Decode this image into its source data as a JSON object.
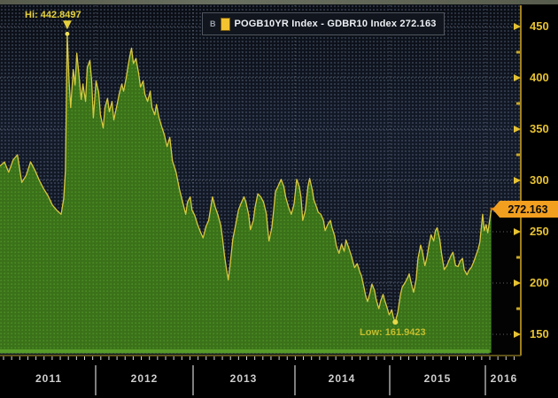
{
  "legend": {
    "tag": "B",
    "swatch_icon": "series-color-swatch",
    "label": "POGB10YR Index - GDBR10 Index 272.163"
  },
  "annotations": {
    "hi": "Hi: 442.8497",
    "low": "Low: 161.9423"
  },
  "last_price": {
    "label": "272.163"
  },
  "y_axis": {
    "ticks": [
      450,
      400,
      350,
      300,
      250,
      200,
      150
    ],
    "minor_ticks": [
      425,
      375,
      325,
      275,
      225,
      175
    ]
  },
  "x_axis": {
    "years": [
      "2011",
      "2012",
      "2013",
      "2014",
      "2015",
      "2016"
    ]
  },
  "chart_data": {
    "type": "area",
    "title": "POGB10YR Index - GDBR10 Index",
    "legend_entries": [
      "POGB10YR Index - GDBR10 Index"
    ],
    "last_value": 272.163,
    "high": {
      "t": 2011.703,
      "value": 442.8497
    },
    "low": {
      "t": 2015.058,
      "value": 161.9423
    },
    "ylim": [
      140,
      465
    ],
    "xlim": [
      2011.0,
      2016.37
    ],
    "grid": true,
    "legend_position": "top-center",
    "colors": {
      "line": "#d9c83f",
      "area": "#3a7119",
      "area_dots": "#4c8d24",
      "axis": "#c79e24",
      "tag": "#f29f1f",
      "tag_line": "#d4770e"
    },
    "series": [
      {
        "name": "POGB10YR Index - GDBR10 Index",
        "points": [
          [
            2011.0,
            314
          ],
          [
            2011.046,
            318
          ],
          [
            2011.091,
            308
          ],
          [
            2011.137,
            320
          ],
          [
            2011.182,
            325
          ],
          [
            2011.228,
            298
          ],
          [
            2011.274,
            305
          ],
          [
            2011.319,
            318
          ],
          [
            2011.365,
            310
          ],
          [
            2011.411,
            300
          ],
          [
            2011.456,
            292
          ],
          [
            2011.502,
            285
          ],
          [
            2011.547,
            276
          ],
          [
            2011.593,
            271
          ],
          [
            2011.639,
            267
          ],
          [
            2011.666,
            282
          ],
          [
            2011.684,
            310
          ],
          [
            2011.703,
            442.85
          ],
          [
            2011.721,
            398
          ],
          [
            2011.739,
            371
          ],
          [
            2011.766,
            408
          ],
          [
            2011.785,
            393
          ],
          [
            2011.803,
            424
          ],
          [
            2011.821,
            407
          ],
          [
            2011.849,
            379
          ],
          [
            2011.867,
            394
          ],
          [
            2011.894,
            377
          ],
          [
            2011.912,
            410
          ],
          [
            2011.94,
            417
          ],
          [
            2011.958,
            397
          ],
          [
            2011.976,
            361
          ],
          [
            2012.004,
            397
          ],
          [
            2012.031,
            386
          ],
          [
            2012.049,
            364
          ],
          [
            2012.077,
            351
          ],
          [
            2012.095,
            371
          ],
          [
            2012.122,
            380
          ],
          [
            2012.14,
            367
          ],
          [
            2012.168,
            377
          ],
          [
            2012.186,
            359
          ],
          [
            2012.214,
            371
          ],
          [
            2012.241,
            384
          ],
          [
            2012.268,
            394
          ],
          [
            2012.286,
            387
          ],
          [
            2012.314,
            400
          ],
          [
            2012.332,
            411
          ],
          [
            2012.35,
            421
          ],
          [
            2012.368,
            429
          ],
          [
            2012.387,
            414
          ],
          [
            2012.414,
            419
          ],
          [
            2012.442,
            404
          ],
          [
            2012.46,
            391
          ],
          [
            2012.487,
            397
          ],
          [
            2012.505,
            384
          ],
          [
            2012.533,
            377
          ],
          [
            2012.56,
            387
          ],
          [
            2012.578,
            371
          ],
          [
            2012.606,
            364
          ],
          [
            2012.624,
            374
          ],
          [
            2012.651,
            361
          ],
          [
            2012.679,
            352
          ],
          [
            2012.706,
            344
          ],
          [
            2012.733,
            333
          ],
          [
            2012.761,
            342
          ],
          [
            2012.788,
            319
          ],
          [
            2012.825,
            308
          ],
          [
            2012.861,
            291
          ],
          [
            2012.898,
            277
          ],
          [
            2012.925,
            267
          ],
          [
            2012.943,
            279
          ],
          [
            2012.971,
            284
          ],
          [
            2012.989,
            271
          ],
          [
            2013.016,
            266
          ],
          [
            2013.044,
            257
          ],
          [
            2013.071,
            250
          ],
          [
            2013.098,
            244
          ],
          [
            2013.126,
            255
          ],
          [
            2013.153,
            261
          ],
          [
            2013.19,
            284
          ],
          [
            2013.217,
            274
          ],
          [
            2013.245,
            266
          ],
          [
            2013.272,
            256
          ],
          [
            2013.29,
            243
          ],
          [
            2013.308,
            227
          ],
          [
            2013.327,
            214
          ],
          [
            2013.345,
            203
          ],
          [
            2013.363,
            217
          ],
          [
            2013.39,
            243
          ],
          [
            2013.418,
            257
          ],
          [
            2013.445,
            271
          ],
          [
            2013.472,
            278
          ],
          [
            2013.5,
            284
          ],
          [
            2013.518,
            279
          ],
          [
            2013.545,
            267
          ],
          [
            2013.563,
            252
          ],
          [
            2013.591,
            261
          ],
          [
            2013.609,
            274
          ],
          [
            2013.636,
            287
          ],
          [
            2013.664,
            284
          ],
          [
            2013.691,
            279
          ],
          [
            2013.718,
            268
          ],
          [
            2013.745,
            241
          ],
          [
            2013.773,
            254
          ],
          [
            2013.791,
            271
          ],
          [
            2013.809,
            289
          ],
          [
            2013.837,
            295
          ],
          [
            2013.864,
            301
          ],
          [
            2013.891,
            294
          ],
          [
            2013.909,
            284
          ],
          [
            2013.937,
            274
          ],
          [
            2013.964,
            267
          ],
          [
            2013.991,
            277
          ],
          [
            2014.019,
            301
          ],
          [
            2014.046,
            294
          ],
          [
            2014.064,
            284
          ],
          [
            2014.082,
            261
          ],
          [
            2014.11,
            271
          ],
          [
            2014.137,
            294
          ],
          [
            2014.155,
            302
          ],
          [
            2014.182,
            291
          ],
          [
            2014.2,
            281
          ],
          [
            2014.228,
            274
          ],
          [
            2014.246,
            269
          ],
          [
            2014.273,
            267
          ],
          [
            2014.301,
            261
          ],
          [
            2014.319,
            251
          ],
          [
            2014.346,
            257
          ],
          [
            2014.374,
            261
          ],
          [
            2014.392,
            254
          ],
          [
            2014.419,
            246
          ],
          [
            2014.437,
            236
          ],
          [
            2014.465,
            229
          ],
          [
            2014.492,
            238
          ],
          [
            2014.52,
            231
          ],
          [
            2014.538,
            242
          ],
          [
            2014.565,
            235
          ],
          [
            2014.593,
            227
          ],
          [
            2014.611,
            221
          ],
          [
            2014.629,
            215
          ],
          [
            2014.657,
            219
          ],
          [
            2014.684,
            211
          ],
          [
            2014.702,
            207
          ],
          [
            2014.73,
            195
          ],
          [
            2014.748,
            187
          ],
          [
            2014.766,
            182
          ],
          [
            2014.793,
            191
          ],
          [
            2014.812,
            199
          ],
          [
            2014.839,
            193
          ],
          [
            2014.857,
            184
          ],
          [
            2014.885,
            175
          ],
          [
            2014.903,
            182
          ],
          [
            2014.93,
            189
          ],
          [
            2014.948,
            183
          ],
          [
            2014.976,
            175
          ],
          [
            2014.994,
            169
          ],
          [
            2015.021,
            174
          ],
          [
            2015.04,
            166
          ],
          [
            2015.058,
            161.94
          ],
          [
            2015.085,
            172
          ],
          [
            2015.113,
            189
          ],
          [
            2015.131,
            196
          ],
          [
            2015.158,
            200
          ],
          [
            2015.186,
            205
          ],
          [
            2015.204,
            209
          ],
          [
            2015.232,
            197
          ],
          [
            2015.25,
            191
          ],
          [
            2015.277,
            204
          ],
          [
            2015.295,
            224
          ],
          [
            2015.323,
            237
          ],
          [
            2015.341,
            231
          ],
          [
            2015.368,
            217
          ],
          [
            2015.387,
            224
          ],
          [
            2015.414,
            239
          ],
          [
            2015.432,
            247
          ],
          [
            2015.46,
            241
          ],
          [
            2015.478,
            251
          ],
          [
            2015.496,
            254
          ],
          [
            2015.524,
            242
          ],
          [
            2015.542,
            229
          ],
          [
            2015.569,
            213
          ],
          [
            2015.597,
            217
          ],
          [
            2015.615,
            221
          ],
          [
            2015.642,
            227
          ],
          [
            2015.661,
            230
          ],
          [
            2015.688,
            217
          ],
          [
            2015.715,
            216
          ],
          [
            2015.734,
            221
          ],
          [
            2015.761,
            224
          ],
          [
            2015.779,
            213
          ],
          [
            2015.807,
            208
          ],
          [
            2015.825,
            212
          ],
          [
            2015.852,
            215
          ],
          [
            2015.88,
            221
          ],
          [
            2015.898,
            226
          ],
          [
            2015.925,
            233
          ],
          [
            2015.943,
            240
          ],
          [
            2015.971,
            267
          ],
          [
            2015.989,
            251
          ],
          [
            2016.007,
            257
          ],
          [
            2016.025,
            249
          ],
          [
            2016.044,
            261
          ],
          [
            2016.062,
            272.163
          ]
        ]
      }
    ]
  }
}
